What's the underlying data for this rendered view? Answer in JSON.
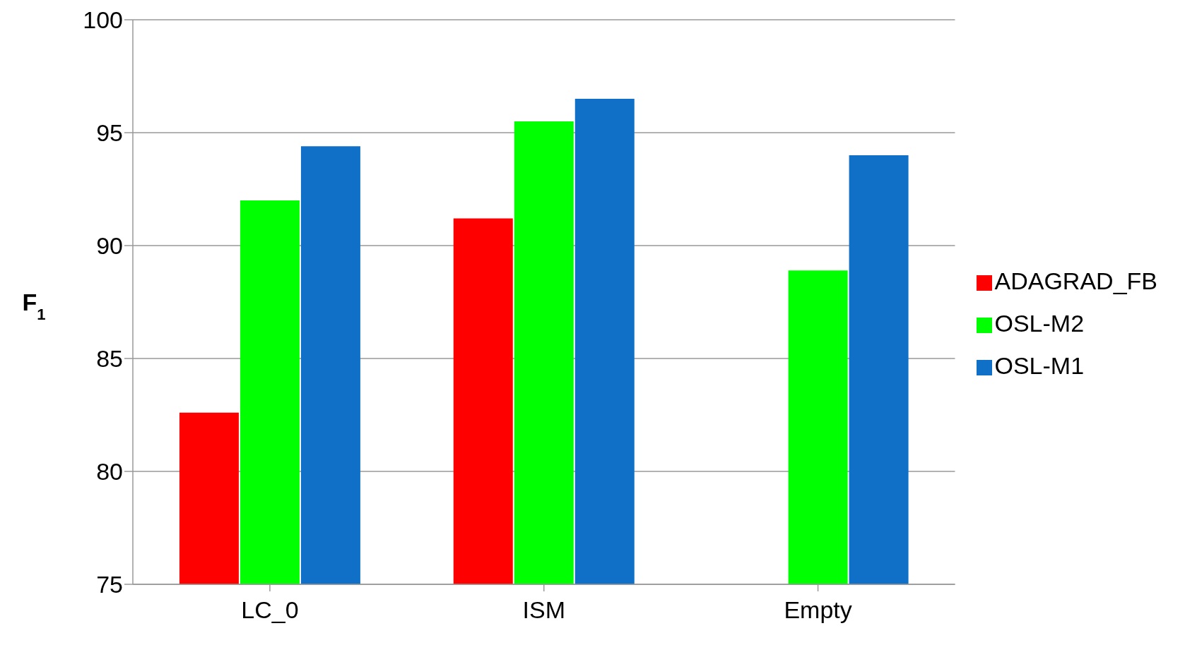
{
  "chart_data": {
    "type": "bar",
    "ylabel": "F$_{1}$",
    "categories": [
      "LC_0",
      "ISM",
      "Empty"
    ],
    "series": [
      {
        "name": "ADAGRAD_FB",
        "color": "#ff0000",
        "values": [
          82.6,
          91.2,
          null
        ]
      },
      {
        "name": "OSL-M2",
        "color": "#00ff00",
        "values": [
          92.0,
          95.5,
          88.9
        ]
      },
      {
        "name": "OSL-M1",
        "color": "#1070c8",
        "values": [
          94.4,
          96.5,
          94.0
        ]
      }
    ],
    "ylim": [
      75,
      100
    ],
    "yticks": [
      75,
      80,
      85,
      90,
      95,
      100
    ],
    "grid": "y",
    "legend": "right"
  }
}
